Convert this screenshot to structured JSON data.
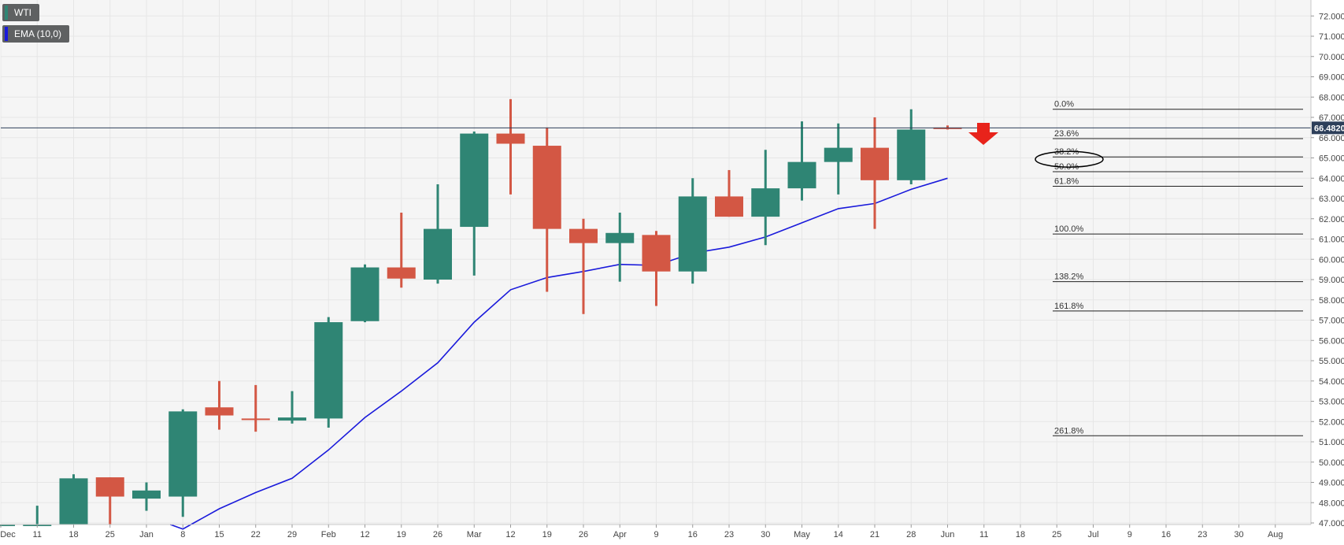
{
  "chart_data": {
    "type": "candlestick",
    "instrument": "WTI",
    "indicator": {
      "name": "EMA (10,0)",
      "color": "#1a1adb"
    },
    "current_price_label": "66.4820",
    "current_price": 66.482,
    "colors": {
      "up": "#2f8574",
      "down": "#d35744",
      "ema": "#1a1adb",
      "arrow": "#e8231b",
      "current_price_bg": "#2d3f5a"
    },
    "ylim": [
      46.6,
      72.5
    ],
    "y_ticks": [
      "47.0000",
      "48.0000",
      "49.0000",
      "50.0000",
      "51.0000",
      "52.0000",
      "53.0000",
      "54.0000",
      "55.0000",
      "56.0000",
      "57.0000",
      "58.0000",
      "59.0000",
      "60.0000",
      "61.0000",
      "62.0000",
      "63.0000",
      "64.0000",
      "65.0000",
      "66.0000",
      "67.0000",
      "68.0000",
      "69.0000",
      "70.0000",
      "71.0000",
      "72.0000"
    ],
    "x_labels": [
      "Dec",
      "11",
      "18",
      "25",
      "Jan",
      "8",
      "15",
      "22",
      "29",
      "Feb",
      "12",
      "19",
      "26",
      "Mar",
      "12",
      "19",
      "26",
      "Apr",
      "9",
      "16",
      "23",
      "30",
      "May",
      "14",
      "21",
      "28",
      "Jun",
      "11",
      "18",
      "25",
      "Jul",
      "9",
      "16",
      "23",
      "30",
      "Aug"
    ],
    "candles": [
      {
        "o": 46.65,
        "h": 46.8,
        "l": 46.6,
        "c": 46.7
      },
      {
        "o": 46.65,
        "h": 47.85,
        "l": 46.6,
        "c": 46.75
      },
      {
        "o": 46.7,
        "h": 49.4,
        "l": 46.6,
        "c": 49.2
      },
      {
        "o": 49.25,
        "h": 49.25,
        "l": 46.6,
        "c": 48.3
      },
      {
        "o": 48.2,
        "h": 49.0,
        "l": 47.6,
        "c": 48.6
      },
      {
        "o": 48.3,
        "h": 52.6,
        "l": 47.3,
        "c": 52.5
      },
      {
        "o": 52.7,
        "h": 54.0,
        "l": 51.6,
        "c": 52.3
      },
      {
        "o": 52.15,
        "h": 53.8,
        "l": 51.5,
        "c": 52.1
      },
      {
        "o": 52.05,
        "h": 53.5,
        "l": 51.9,
        "c": 52.2
      },
      {
        "o": 52.15,
        "h": 57.15,
        "l": 51.7,
        "c": 56.9
      },
      {
        "o": 56.95,
        "h": 59.75,
        "l": 56.9,
        "c": 59.6
      },
      {
        "o": 59.6,
        "h": 62.3,
        "l": 58.6,
        "c": 59.05
      },
      {
        "o": 59.0,
        "h": 63.7,
        "l": 58.8,
        "c": 61.5
      },
      {
        "o": 61.6,
        "h": 66.3,
        "l": 59.2,
        "c": 66.2
      },
      {
        "o": 66.2,
        "h": 67.9,
        "l": 63.2,
        "c": 65.7
      },
      {
        "o": 65.6,
        "h": 66.5,
        "l": 58.4,
        "c": 61.5
      },
      {
        "o": 61.5,
        "h": 62.0,
        "l": 57.3,
        "c": 60.8
      },
      {
        "o": 60.8,
        "h": 62.3,
        "l": 58.9,
        "c": 61.3
      },
      {
        "o": 61.2,
        "h": 61.4,
        "l": 57.7,
        "c": 59.4
      },
      {
        "o": 59.4,
        "h": 64.0,
        "l": 58.8,
        "c": 63.1
      },
      {
        "o": 63.1,
        "h": 64.4,
        "l": 62.1,
        "c": 62.1
      },
      {
        "o": 62.1,
        "h": 65.4,
        "l": 60.7,
        "c": 63.5
      },
      {
        "o": 63.5,
        "h": 66.8,
        "l": 62.9,
        "c": 64.8
      },
      {
        "o": 64.8,
        "h": 66.7,
        "l": 63.2,
        "c": 65.5
      },
      {
        "o": 65.5,
        "h": 67.0,
        "l": 61.5,
        "c": 63.9
      },
      {
        "o": 63.9,
        "h": 67.4,
        "l": 63.7,
        "c": 66.4
      },
      {
        "o": 66.5,
        "h": 66.6,
        "l": 66.4,
        "c": 66.45
      }
    ],
    "ema": [
      null,
      null,
      null,
      null,
      null,
      46.7,
      47.7,
      48.5,
      49.2,
      50.6,
      52.2,
      53.5,
      54.9,
      56.9,
      58.5,
      59.1,
      59.4,
      59.75,
      59.7,
      60.3,
      60.6,
      61.1,
      61.8,
      62.5,
      62.75,
      63.45,
      64.0
    ],
    "fibonacci": [
      {
        "label": "0.0%",
        "price": 67.4
      },
      {
        "label": "23.6%",
        "price": 65.95
      },
      {
        "label": "38.2%",
        "price": 65.05
      },
      {
        "label": "50.0%",
        "price": 64.32
      },
      {
        "label": "61.8%",
        "price": 63.6
      },
      {
        "label": "100.0%",
        "price": 61.25
      },
      {
        "label": "138.2%",
        "price": 58.9
      },
      {
        "label": "161.8%",
        "price": 57.45
      },
      {
        "label": "261.8%",
        "price": 51.3
      }
    ],
    "highlighted_level": "38.2%",
    "arrow_direction": "down"
  }
}
